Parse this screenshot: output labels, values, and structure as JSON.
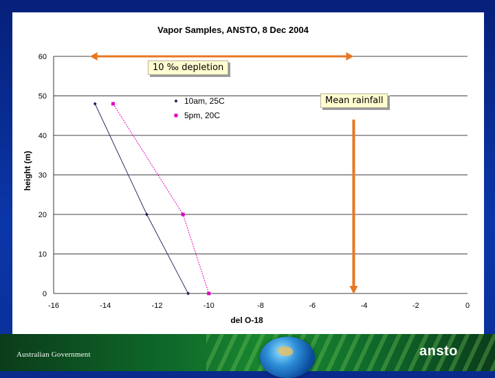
{
  "chart_data": {
    "type": "scatter",
    "title": "Vapor Samples, ANSTO,  8 Dec 2004",
    "xlabel": "del O-18",
    "ylabel": "height (m)",
    "xlim": [
      -16,
      0
    ],
    "ylim": [
      0,
      60
    ],
    "xticks": [
      "-16",
      "-14",
      "-12",
      "-10",
      "-8",
      "-6",
      "-4",
      "-2",
      "0"
    ],
    "yticks": [
      "0",
      "10",
      "20",
      "30",
      "40",
      "50",
      "60"
    ],
    "grid": "horizontal",
    "legend_position": "upper-left-inner",
    "series": [
      {
        "name": "10am, 25C",
        "color": "#1a1a5a",
        "marker": "diamond",
        "points": [
          {
            "x": -14.4,
            "y": 48
          },
          {
            "x": -12.4,
            "y": 20
          },
          {
            "x": -10.8,
            "y": 0
          }
        ]
      },
      {
        "name": "5pm, 20C",
        "color": "#e000c0",
        "marker": "square",
        "points": [
          {
            "x": -13.7,
            "y": 48
          },
          {
            "x": -11.0,
            "y": 20
          },
          {
            "x": -10.0,
            "y": 0
          }
        ]
      }
    ],
    "annotations": {
      "depletion_label": "10 ‰ depletion",
      "rainfall_label": "Mean rainfall",
      "arrow_color": "#e87722",
      "depletion_range": [
        -14.6,
        -4.4
      ],
      "depletion_height": 60,
      "rainfall_x": -4.4,
      "rainfall_top": 44
    }
  },
  "footer": {
    "government": "Australian Government",
    "logo": "ansto"
  },
  "colors": {
    "background": "#0a2a8c",
    "footer": "#0f6a2a"
  }
}
